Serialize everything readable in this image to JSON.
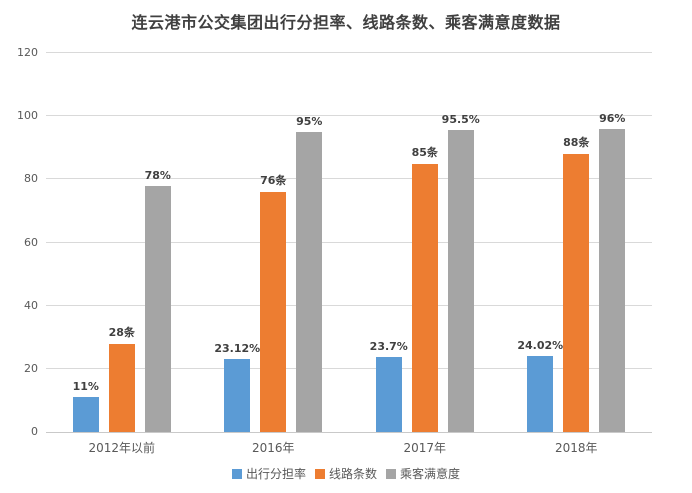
{
  "chart_data": {
    "type": "bar",
    "title": "连云港市公交集团出行分担率、线路条数、乘客满意度数据",
    "categories": [
      "2012年以前",
      "2016年",
      "2017年",
      "2018年"
    ],
    "series": [
      {
        "name": "出行分担率",
        "color": "#5B9BD5",
        "values": [
          11,
          23.12,
          23.7,
          24.02
        ],
        "labels": [
          "11%",
          "23.12%",
          "23.7%",
          "24.02%"
        ]
      },
      {
        "name": "线路条数",
        "color": "#ED7D31",
        "values": [
          28,
          76,
          85,
          88
        ],
        "labels": [
          "28条",
          "76条",
          "85条",
          "88条"
        ]
      },
      {
        "name": "乘客满意度",
        "color": "#A5A5A5",
        "values": [
          78,
          95,
          95.5,
          96
        ],
        "labels": [
          "78%",
          "95%",
          "95.5%",
          "96%"
        ]
      }
    ],
    "y_axis": {
      "min": 0,
      "max": 120,
      "step": 20,
      "ticks": [
        0,
        20,
        40,
        60,
        80,
        100,
        120
      ]
    },
    "xlabel": "",
    "ylabel": "",
    "grid": true,
    "legend_position": "bottom"
  }
}
